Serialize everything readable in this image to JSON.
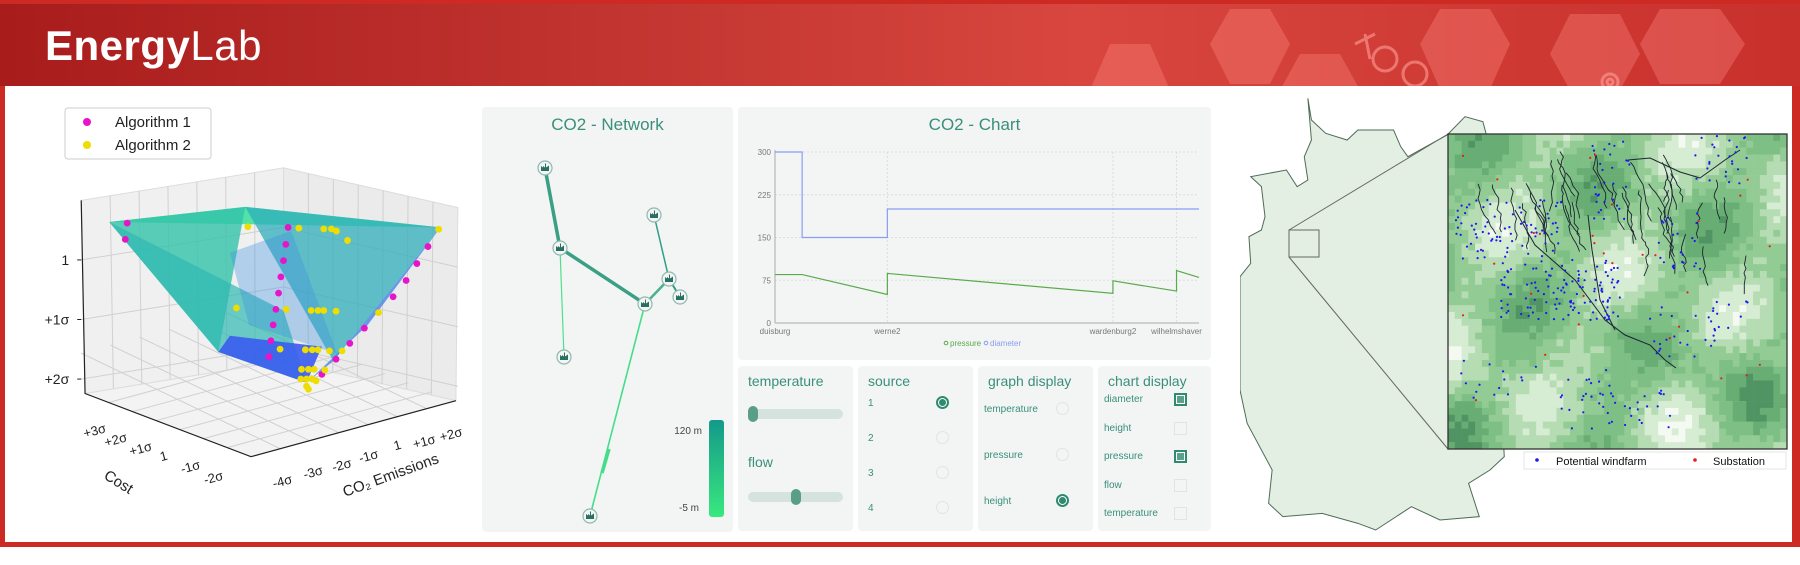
{
  "header": {
    "brand_bold": "Energy",
    "brand_light": "Lab",
    "accent": "#cc2a22"
  },
  "pareto_plot": {
    "chart_data": {
      "type": "scatter3d",
      "legend": [
        {
          "name": "Algorithm 1",
          "color": "#e815c8"
        },
        {
          "name": "Algorithm 2",
          "color": "#eedd00"
        }
      ],
      "xlabel": "Cost",
      "ylabel": "CO₂ Emissions",
      "x_ticks": [
        "+3σ",
        "+2σ",
        "+1σ",
        "1",
        "-1σ",
        "-2σ"
      ],
      "y_ticks": [
        "-4σ",
        "-3σ",
        "-2σ",
        "-1σ",
        "1",
        "+1σ",
        "+2σ"
      ],
      "z_ticks": [
        "1",
        "+1σ",
        "+2σ"
      ],
      "surface_colormap": [
        "#3fe0a0",
        "#2fb8b8",
        "#3a5cf0"
      ],
      "legend_position": "top-left"
    }
  },
  "network": {
    "title": "CO2 - Network",
    "colorbar": {
      "max_label": "120 m",
      "min_label": "-5 m",
      "colors": [
        "#14998a",
        "#38e87f"
      ]
    }
  },
  "chart": {
    "title": "CO2 - Chart",
    "chart_data": {
      "type": "line",
      "ylim": [
        0,
        300
      ],
      "y_ticks": [
        0,
        75,
        150,
        225,
        300
      ],
      "x_ticks": [
        {
          "label": "duisburg",
          "pos": 0
        },
        {
          "label": "werne2",
          "pos": 0.265
        },
        {
          "label": "wardenburg2",
          "pos": 0.797
        },
        {
          "label": "wilhelmshaver",
          "pos": 0.947
        }
      ],
      "grid": true,
      "legend_position": "bottom",
      "series": [
        {
          "name": "pressure",
          "color": "#5aaa4a",
          "points": [
            [
              0,
              85
            ],
            [
              0.064,
              85
            ],
            [
              0.265,
              50
            ],
            [
              0.265,
              87
            ],
            [
              0.797,
              52
            ],
            [
              0.797,
              74
            ],
            [
              0.947,
              56
            ],
            [
              0.947,
              92
            ],
            [
              1,
              80
            ]
          ]
        },
        {
          "name": "diameter",
          "color": "#8a9cf5",
          "points": [
            [
              0,
              300
            ],
            [
              0.064,
              300
            ],
            [
              0.064,
              150
            ],
            [
              0.265,
              150
            ],
            [
              0.265,
              200
            ],
            [
              1,
              200
            ]
          ]
        }
      ]
    }
  },
  "controls": {
    "temperature": {
      "title": "temperature",
      "value": 0.0
    },
    "flow": {
      "title": "flow",
      "value": 0.5
    },
    "source": {
      "title": "source",
      "options": [
        "1",
        "2",
        "3",
        "4"
      ],
      "selected": 0
    },
    "graph_display": {
      "title": "graph display",
      "options": [
        "temperature",
        "pressure",
        "height"
      ],
      "selected": 2
    },
    "chart_display": {
      "title": "chart display",
      "options": [
        {
          "label": "diameter",
          "checked": true
        },
        {
          "label": "height",
          "checked": false
        },
        {
          "label": "pressure",
          "checked": true
        },
        {
          "label": "flow",
          "checked": false
        },
        {
          "label": "temperature",
          "checked": false
        }
      ]
    }
  },
  "map": {
    "legend": [
      {
        "label": "Potential windfarm",
        "color": "#1a1aee"
      },
      {
        "label": "Substation",
        "color": "#ee1a1a"
      }
    ]
  }
}
